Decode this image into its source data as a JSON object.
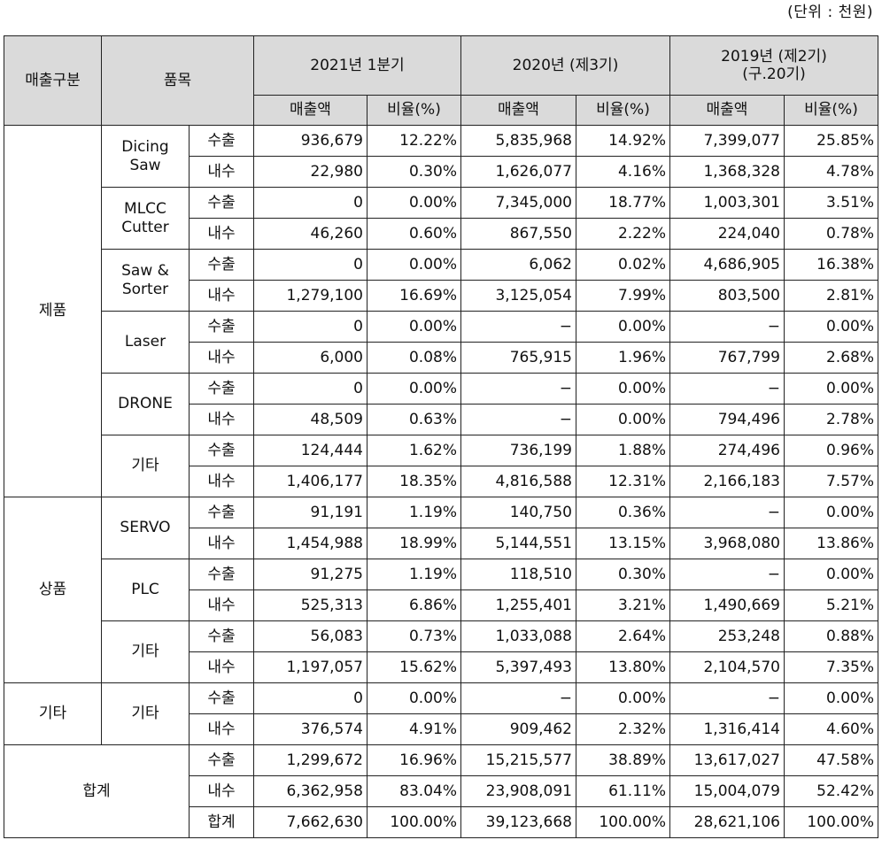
{
  "unit_note": "(단위 : 천원)",
  "headers": {
    "category": "매출구분",
    "item": "품목",
    "periods": [
      {
        "line1": "2021년 1분기",
        "line2": ""
      },
      {
        "line1": "2020년 (제3기)",
        "line2": ""
      },
      {
        "line1": "2019년 (제2기)",
        "line2": "(구.20기)"
      }
    ],
    "amount": "매출액",
    "ratio": "비율(%)"
  },
  "labels": {
    "export": "수출",
    "domestic": "내수",
    "total": "합계"
  },
  "groups": [
    {
      "category": "제품",
      "items": [
        {
          "name_lines": [
            "Dicing",
            "Saw"
          ],
          "rows": [
            {
              "type": "수출",
              "v": [
                "936,679",
                "12.22%",
                "5,835,968",
                "14.92%",
                "7,399,077",
                "25.85%"
              ]
            },
            {
              "type": "내수",
              "v": [
                "22,980",
                "0.30%",
                "1,626,077",
                "4.16%",
                "1,368,328",
                "4.78%"
              ]
            }
          ]
        },
        {
          "name_lines": [
            "MLCC",
            "Cutter"
          ],
          "rows": [
            {
              "type": "수출",
              "v": [
                "0",
                "0.00%",
                "7,345,000",
                "18.77%",
                "1,003,301",
                "3.51%"
              ]
            },
            {
              "type": "내수",
              "v": [
                "46,260",
                "0.60%",
                "867,550",
                "2.22%",
                "224,040",
                "0.78%"
              ]
            }
          ]
        },
        {
          "name_lines": [
            "Saw &",
            "Sorter"
          ],
          "rows": [
            {
              "type": "수출",
              "v": [
                "0",
                "0.00%",
                "6,062",
                "0.02%",
                "4,686,905",
                "16.38%"
              ]
            },
            {
              "type": "내수",
              "v": [
                "1,279,100",
                "16.69%",
                "3,125,054",
                "7.99%",
                "803,500",
                "2.81%"
              ]
            }
          ]
        },
        {
          "name_lines": [
            "Laser"
          ],
          "rows": [
            {
              "type": "수출",
              "v": [
                "0",
                "0.00%",
                "−",
                "0.00%",
                "−",
                "0.00%"
              ]
            },
            {
              "type": "내수",
              "v": [
                "6,000",
                "0.08%",
                "765,915",
                "1.96%",
                "767,799",
                "2.68%"
              ]
            }
          ]
        },
        {
          "name_lines": [
            "DRONE"
          ],
          "rows": [
            {
              "type": "수출",
              "v": [
                "0",
                "0.00%",
                "−",
                "0.00%",
                "−",
                "0.00%"
              ]
            },
            {
              "type": "내수",
              "v": [
                "48,509",
                "0.63%",
                "−",
                "0.00%",
                "794,496",
                "2.78%"
              ]
            }
          ]
        },
        {
          "name_lines": [
            "기타"
          ],
          "rows": [
            {
              "type": "수출",
              "v": [
                "124,444",
                "1.62%",
                "736,199",
                "1.88%",
                "274,496",
                "0.96%"
              ]
            },
            {
              "type": "내수",
              "v": [
                "1,406,177",
                "18.35%",
                "4,816,588",
                "12.31%",
                "2,166,183",
                "7.57%"
              ]
            }
          ]
        }
      ]
    },
    {
      "category": "상품",
      "items": [
        {
          "name_lines": [
            "SERVO"
          ],
          "rows": [
            {
              "type": "수출",
              "v": [
                "91,191",
                "1.19%",
                "140,750",
                "0.36%",
                "−",
                "0.00%"
              ]
            },
            {
              "type": "내수",
              "v": [
                "1,454,988",
                "18.99%",
                "5,144,551",
                "13.15%",
                "3,968,080",
                "13.86%"
              ]
            }
          ]
        },
        {
          "name_lines": [
            "PLC"
          ],
          "rows": [
            {
              "type": "수출",
              "v": [
                "91,275",
                "1.19%",
                "118,510",
                "0.30%",
                "−",
                "0.00%"
              ]
            },
            {
              "type": "내수",
              "v": [
                "525,313",
                "6.86%",
                "1,255,401",
                "3.21%",
                "1,490,669",
                "5.21%"
              ]
            }
          ]
        },
        {
          "name_lines": [
            "기타"
          ],
          "rows": [
            {
              "type": "수출",
              "v": [
                "56,083",
                "0.73%",
                "1,033,088",
                "2.64%",
                "253,248",
                "0.88%"
              ]
            },
            {
              "type": "내수",
              "v": [
                "1,197,057",
                "15.62%",
                "5,397,493",
                "13.80%",
                "2,104,570",
                "7.35%"
              ]
            }
          ]
        }
      ]
    },
    {
      "category": "기타",
      "items": [
        {
          "name_lines": [
            "기타"
          ],
          "rows": [
            {
              "type": "수출",
              "v": [
                "0",
                "0.00%",
                "−",
                "0.00%",
                "−",
                "0.00%"
              ]
            },
            {
              "type": "내수",
              "v": [
                "376,574",
                "4.91%",
                "909,462",
                "2.32%",
                "1,316,414",
                "4.60%"
              ]
            }
          ]
        }
      ]
    }
  ],
  "total": {
    "label": "합계",
    "rows": [
      {
        "type": "수출",
        "v": [
          "1,299,672",
          "16.96%",
          "15,215,577",
          "38.89%",
          "13,617,027",
          "47.58%"
        ]
      },
      {
        "type": "내수",
        "v": [
          "6,362,958",
          "83.04%",
          "23,908,091",
          "61.11%",
          "15,004,079",
          "52.42%"
        ]
      },
      {
        "type": "합계",
        "v": [
          "7,662,630",
          "100.00%",
          "39,123,668",
          "100.00%",
          "28,621,106",
          "100.00%"
        ]
      }
    ]
  }
}
